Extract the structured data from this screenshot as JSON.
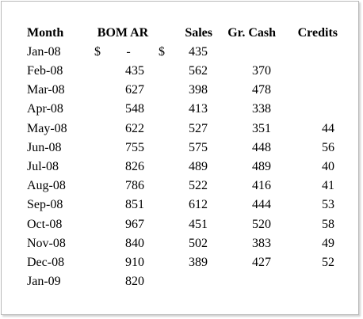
{
  "headers": {
    "month": "Month",
    "bom_ar": "BOM AR",
    "sales": "Sales",
    "gr_cash": "Gr. Cash",
    "credits": "Credits"
  },
  "first_row": {
    "month": "Jan-08",
    "bom_currency": "$",
    "bom_value": "-",
    "sales_currency": "$",
    "sales": "435"
  },
  "rows": [
    {
      "month": "Feb-08",
      "bom_ar": "435",
      "sales": "562",
      "gr_cash": "370",
      "credits": ""
    },
    {
      "month": "Mar-08",
      "bom_ar": "627",
      "sales": "398",
      "gr_cash": "478",
      "credits": ""
    },
    {
      "month": "Apr-08",
      "bom_ar": "548",
      "sales": "413",
      "gr_cash": "338",
      "credits": ""
    },
    {
      "month": "May-08",
      "bom_ar": "622",
      "sales": "527",
      "gr_cash": "351",
      "credits": "44"
    },
    {
      "month": "Jun-08",
      "bom_ar": "755",
      "sales": "575",
      "gr_cash": "448",
      "credits": "56"
    },
    {
      "month": "Jul-08",
      "bom_ar": "826",
      "sales": "489",
      "gr_cash": "489",
      "credits": "40"
    },
    {
      "month": "Aug-08",
      "bom_ar": "786",
      "sales": "522",
      "gr_cash": "416",
      "credits": "41"
    },
    {
      "month": "Sep-08",
      "bom_ar": "851",
      "sales": "612",
      "gr_cash": "444",
      "credits": "53"
    },
    {
      "month": "Oct-08",
      "bom_ar": "967",
      "sales": "451",
      "gr_cash": "520",
      "credits": "58"
    },
    {
      "month": "Nov-08",
      "bom_ar": "840",
      "sales": "502",
      "gr_cash": "383",
      "credits": "49"
    },
    {
      "month": "Dec-08",
      "bom_ar": "910",
      "sales": "389",
      "gr_cash": "427",
      "credits": "52"
    },
    {
      "month": "Jan-09",
      "bom_ar": "820",
      "sales": "",
      "gr_cash": "",
      "credits": ""
    }
  ]
}
